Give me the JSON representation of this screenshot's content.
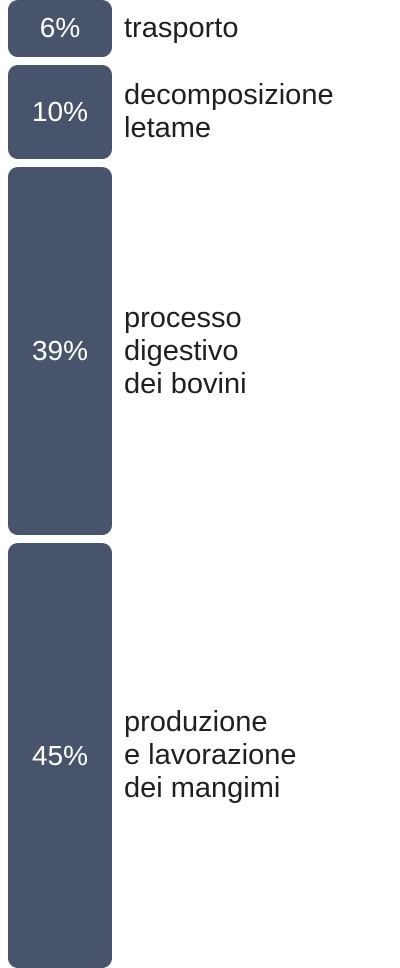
{
  "colors": {
    "bar": "#48536c",
    "text": "#1f1f1f",
    "value_text": "#ffffff"
  },
  "chart_data": {
    "type": "bar",
    "orientation": "stacked-vertical",
    "unit": "%",
    "categories": [
      "trasporto",
      "decomposizione\nletame",
      "processo\ndigestivo\ndei bovini",
      "produzione\ne lavorazione\ndei mangimi"
    ],
    "values": [
      6,
      10,
      39,
      45
    ],
    "value_labels": [
      "6%",
      "10%",
      "39%",
      "45%"
    ]
  }
}
